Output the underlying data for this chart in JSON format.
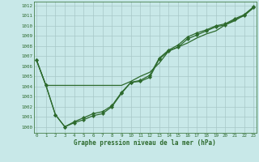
{
  "line1_x": [
    0,
    1,
    2,
    3,
    4,
    5,
    6,
    7,
    8,
    9,
    10,
    11,
    12,
    13,
    14,
    15,
    16,
    17,
    18,
    19,
    20,
    21,
    22,
    23
  ],
  "line1_y": [
    1006.6,
    1004.1,
    1004.1,
    1004.1,
    1004.1,
    1004.1,
    1004.1,
    1004.1,
    1004.1,
    1004.1,
    1004.5,
    1005.0,
    1005.4,
    1006.3,
    1007.5,
    1007.9,
    1008.3,
    1008.8,
    1009.2,
    1009.5,
    1010.1,
    1010.5,
    1011.1,
    1011.8
  ],
  "line2_x": [
    0,
    1,
    2,
    3,
    4,
    5,
    6,
    7,
    8,
    9,
    10,
    11,
    12,
    13,
    14,
    15,
    16,
    17,
    18,
    19,
    20,
    21,
    22,
    23
  ],
  "line2_y": [
    1006.6,
    1004.1,
    1001.2,
    1000.0,
    1000.4,
    1000.7,
    1001.1,
    1001.3,
    1002.0,
    1003.3,
    1004.4,
    1004.5,
    1004.9,
    1006.7,
    1007.5,
    1007.9,
    1008.7,
    1009.1,
    1009.5,
    1009.9,
    1010.1,
    1010.6,
    1011.0,
    1011.8
  ],
  "line3_x": [
    0,
    1,
    2,
    3,
    4,
    5,
    6,
    7,
    8,
    9,
    10,
    11,
    12,
    13,
    14,
    15,
    16,
    17,
    18,
    19,
    20,
    21,
    22,
    23
  ],
  "line3_y": [
    1006.6,
    1004.1,
    1001.2,
    1000.0,
    1000.5,
    1000.9,
    1001.3,
    1001.5,
    1002.1,
    1003.4,
    1004.4,
    1004.6,
    1005.1,
    1006.8,
    1007.6,
    1008.1,
    1008.9,
    1009.3,
    1009.6,
    1010.0,
    1010.2,
    1010.7,
    1011.1,
    1011.9
  ],
  "x": [
    0,
    1,
    2,
    3,
    4,
    5,
    6,
    7,
    8,
    9,
    10,
    11,
    12,
    13,
    14,
    15,
    16,
    17,
    18,
    19,
    20,
    21,
    22,
    23
  ],
  "bg_color": "#c8e8e8",
  "line_color": "#2d6a2d",
  "grid_color": "#a8c8c8",
  "xlabel": "Graphe pression niveau de la mer (hPa)",
  "ylim": [
    999.4,
    1012.4
  ],
  "xlim": [
    -0.3,
    23.3
  ],
  "yticks": [
    1000,
    1001,
    1002,
    1003,
    1004,
    1005,
    1006,
    1007,
    1008,
    1009,
    1010,
    1011,
    1012
  ],
  "xticks": [
    0,
    1,
    2,
    3,
    4,
    5,
    6,
    7,
    8,
    9,
    10,
    11,
    12,
    13,
    14,
    15,
    16,
    17,
    18,
    19,
    20,
    21,
    22,
    23
  ]
}
